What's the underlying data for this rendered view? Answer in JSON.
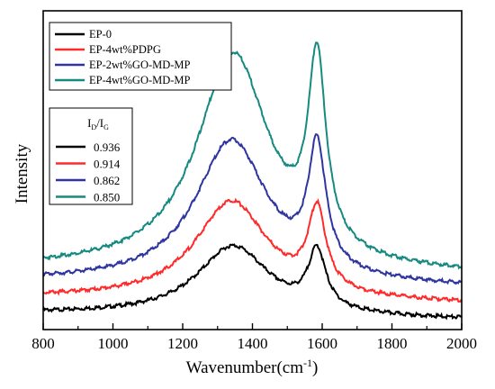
{
  "chart_data": {
    "type": "line",
    "xlabel": "Wavenumber(cm",
    "xlabel_superscript": "-1",
    "xlabel_suffix": ")",
    "ylabel": "Intensity",
    "xlim": [
      800,
      2000
    ],
    "ylim": [
      0,
      100
    ],
    "x_ticks": [
      800,
      1000,
      1200,
      1400,
      1600,
      1800,
      2000
    ],
    "grid": false,
    "y_tick_labels": false,
    "legend_position": "top-left",
    "series": [
      {
        "name": "EP-0",
        "color": "#000000",
        "offset": 3,
        "baseline": 3,
        "d_band": {
          "center": 1345,
          "width": 115,
          "height": 22
        },
        "g_band": {
          "center": 1585,
          "width": 38,
          "height": 18
        },
        "tail": 2
      },
      {
        "name": "EP-4wt%PDPG",
        "color": "#ff2a2a",
        "offset": 8,
        "baseline": 8,
        "d_band": {
          "center": 1340,
          "width": 115,
          "height": 31
        },
        "g_band": {
          "center": 1585,
          "width": 38,
          "height": 25
        },
        "tail": 2
      },
      {
        "name": "EP-2wt%GO-MD-MP",
        "color": "#2e35a0",
        "offset": 13,
        "baseline": 13,
        "d_band": {
          "center": 1340,
          "width": 115,
          "height": 45
        },
        "g_band": {
          "center": 1585,
          "width": 38,
          "height": 38
        },
        "tail": 2
      },
      {
        "name": "EP-4wt%GO-MD-MP",
        "color": "#168a80",
        "offset": 17,
        "baseline": 17,
        "d_band": {
          "center": 1345,
          "width": 115,
          "height": 68
        },
        "g_band": {
          "center": 1585,
          "width": 38,
          "height": 58
        },
        "tail": 2
      }
    ],
    "ratio_legend": {
      "title_main": "I",
      "title_sub1": "D",
      "title_mid": "/I",
      "title_sub2": "G",
      "entries": [
        {
          "value": "0.936",
          "color": "#000000"
        },
        {
          "value": "0.914",
          "color": "#ff2a2a"
        },
        {
          "value": "0.862",
          "color": "#2e35a0"
        },
        {
          "value": "0.850",
          "color": "#168a80"
        }
      ]
    }
  }
}
